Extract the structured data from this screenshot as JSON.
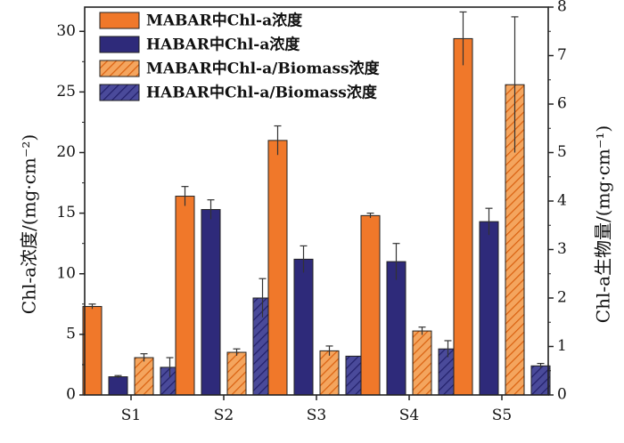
{
  "chart_data": {
    "type": "bar",
    "categories": [
      "S1",
      "S2",
      "S3",
      "S4",
      "S5"
    ],
    "ylabel_left": "Chl-a浓度/(mg·cm⁻²)",
    "ylabel_right": "Chl-a生物量/(mg·cm⁻¹)",
    "ylim_left": [
      0,
      32
    ],
    "ylim_right": [
      0,
      8
    ],
    "yticks_left": [
      "0",
      "5",
      "10",
      "15",
      "20",
      "25",
      "30"
    ],
    "yticks_right": [
      "0",
      "1",
      "2",
      "3",
      "4",
      "5",
      "6",
      "7",
      "8"
    ],
    "grid": false,
    "legend_position": "top-left",
    "series": [
      {
        "name": "MABAR中Chl-a浓度",
        "axis": "left",
        "pattern": "solid",
        "color": "#f0782a",
        "values": [
          7.3,
          16.4,
          21.0,
          14.8,
          29.4
        ],
        "errors": [
          0.2,
          0.8,
          1.2,
          0.2,
          2.2
        ]
      },
      {
        "name": "HABAR中Chl-a浓度",
        "axis": "left",
        "pattern": "solid",
        "color": "#2e2a7a",
        "values": [
          1.5,
          15.3,
          11.2,
          11.0,
          14.3
        ],
        "errors": [
          0.1,
          0.8,
          1.1,
          1.5,
          1.1
        ]
      },
      {
        "name": "MABAR中Chl-a/Biomass浓度",
        "axis": "right",
        "pattern": "hatched",
        "color": "#f0782a",
        "values": [
          0.77,
          0.88,
          0.91,
          1.32,
          6.4
        ],
        "errors": [
          0.08,
          0.07,
          0.1,
          0.08,
          1.4
        ]
      },
      {
        "name": "HABAR中Chl-a/Biomass浓度",
        "axis": "right",
        "pattern": "hatched",
        "color": "#2e2a7a",
        "values": [
          0.57,
          2.0,
          0.8,
          0.95,
          0.6
        ],
        "errors": [
          0.2,
          0.4,
          0.0,
          0.17,
          0.05
        ]
      }
    ]
  }
}
